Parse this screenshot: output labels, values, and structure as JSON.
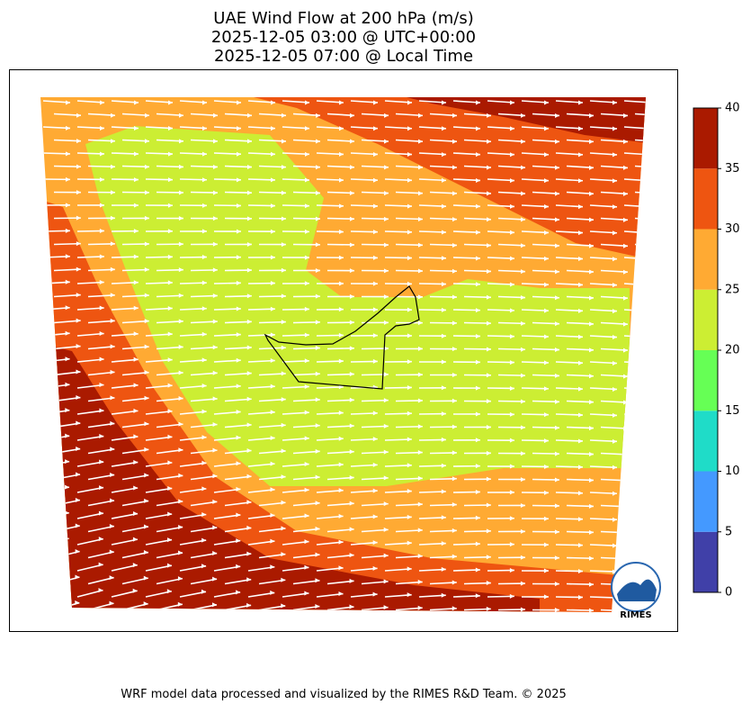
{
  "title": [
    "UAE Wind Flow at 200 hPa (m/s)",
    "2025-12-05 03:00 @ UTC+00:00",
    "2025-12-05 07:00 @ Local Time"
  ],
  "colorbar": {
    "lim": [
      0,
      40
    ],
    "ticks": [
      0,
      5,
      10,
      15,
      20,
      25,
      30,
      35,
      40
    ],
    "colors": [
      "#4040a8",
      "#4499ff",
      "#1fdcc8",
      "#66ff55",
      "#ccee33",
      "#ffaa33",
      "#ee5511",
      "#aa1a00"
    ]
  },
  "logo": "RIMES",
  "footer": "WRF model data processed and visualized by the RIMES R&D Team. © 2025"
}
